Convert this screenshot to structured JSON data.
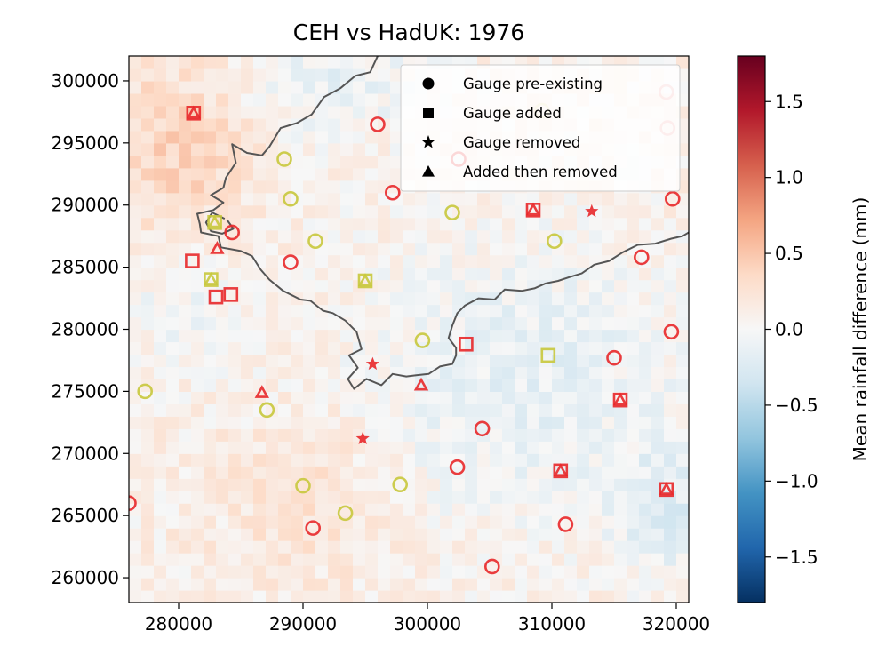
{
  "chart_data": {
    "type": "heatmap",
    "title": "CEH vs HadUK: 1976",
    "xlabel": "",
    "ylabel": "",
    "xlim": [
      276000,
      321000
    ],
    "ylim": [
      258000,
      302000
    ],
    "x_ticks": [
      280000,
      290000,
      300000,
      310000,
      320000
    ],
    "x_tick_labels": [
      "280000",
      "290000",
      "300000",
      "310000",
      "320000"
    ],
    "y_ticks": [
      260000,
      265000,
      270000,
      275000,
      280000,
      285000,
      290000,
      295000,
      300000
    ],
    "y_tick_labels": [
      "260000",
      "265000",
      "270000",
      "275000",
      "280000",
      "285000",
      "290000",
      "295000",
      "300000"
    ],
    "colorbar": {
      "label": "Mean rainfall difference (mm)",
      "range": [
        -1.8,
        1.8
      ],
      "ticks": [
        -1.5,
        -1.0,
        -0.5,
        0.0,
        0.5,
        1.0,
        1.5
      ],
      "tick_labels": [
        "−1.5",
        "−1.0",
        "−0.5",
        "0.0",
        "0.5",
        "1.0",
        "1.5"
      ],
      "colormap": "RdBu_r"
    },
    "grid_cell_size_m": 1000,
    "legend": {
      "position": "upper-right",
      "entries": [
        {
          "marker": "circle",
          "label": "Gauge pre-existing"
        },
        {
          "marker": "square",
          "label": "Gauge added"
        },
        {
          "marker": "star",
          "label": "Gauge removed"
        },
        {
          "marker": "triangle",
          "label": "Added then removed"
        }
      ]
    },
    "marker_colors": {
      "red": "#e8282a",
      "yellow": "#c8c83c",
      "boundary": "#555555"
    },
    "gauges": [
      {
        "x": 281200,
        "y": 297400,
        "marker": "square",
        "color": "red"
      },
      {
        "x": 281200,
        "y": 297400,
        "marker": "triangle",
        "color": "red"
      },
      {
        "x": 296000,
        "y": 296500,
        "marker": "circle",
        "color": "red"
      },
      {
        "x": 288500,
        "y": 293700,
        "marker": "circle",
        "color": "yellow"
      },
      {
        "x": 302500,
        "y": 293700,
        "marker": "circle",
        "color": "red"
      },
      {
        "x": 289000,
        "y": 290500,
        "marker": "circle",
        "color": "yellow"
      },
      {
        "x": 297200,
        "y": 291000,
        "marker": "circle",
        "color": "red"
      },
      {
        "x": 302000,
        "y": 289400,
        "marker": "circle",
        "color": "yellow"
      },
      {
        "x": 308500,
        "y": 289600,
        "marker": "square",
        "color": "red"
      },
      {
        "x": 308500,
        "y": 289600,
        "marker": "triangle",
        "color": "red"
      },
      {
        "x": 313200,
        "y": 289500,
        "marker": "star",
        "color": "red"
      },
      {
        "x": 319700,
        "y": 290500,
        "marker": "circle",
        "color": "red"
      },
      {
        "x": 282900,
        "y": 288600,
        "marker": "square",
        "color": "yellow"
      },
      {
        "x": 282900,
        "y": 288600,
        "marker": "triangle",
        "color": "yellow"
      },
      {
        "x": 284300,
        "y": 287800,
        "marker": "circle",
        "color": "red"
      },
      {
        "x": 291000,
        "y": 287100,
        "marker": "circle",
        "color": "yellow"
      },
      {
        "x": 310200,
        "y": 287100,
        "marker": "circle",
        "color": "yellow"
      },
      {
        "x": 283100,
        "y": 286500,
        "marker": "triangle",
        "color": "red"
      },
      {
        "x": 281100,
        "y": 285500,
        "marker": "square",
        "color": "red"
      },
      {
        "x": 289000,
        "y": 285400,
        "marker": "circle",
        "color": "red"
      },
      {
        "x": 317200,
        "y": 285800,
        "marker": "circle",
        "color": "red"
      },
      {
        "x": 282600,
        "y": 284000,
        "marker": "square",
        "color": "yellow"
      },
      {
        "x": 282600,
        "y": 284000,
        "marker": "triangle",
        "color": "yellow"
      },
      {
        "x": 295000,
        "y": 283900,
        "marker": "square",
        "color": "yellow"
      },
      {
        "x": 295000,
        "y": 283900,
        "marker": "triangle",
        "color": "yellow"
      },
      {
        "x": 283000,
        "y": 282600,
        "marker": "square",
        "color": "red"
      },
      {
        "x": 284200,
        "y": 282800,
        "marker": "square",
        "color": "red"
      },
      {
        "x": 299600,
        "y": 279100,
        "marker": "circle",
        "color": "yellow"
      },
      {
        "x": 303100,
        "y": 278800,
        "marker": "square",
        "color": "red"
      },
      {
        "x": 309700,
        "y": 277900,
        "marker": "square",
        "color": "yellow"
      },
      {
        "x": 315000,
        "y": 277700,
        "marker": "circle",
        "color": "red"
      },
      {
        "x": 319600,
        "y": 279800,
        "marker": "circle",
        "color": "red"
      },
      {
        "x": 295600,
        "y": 277200,
        "marker": "star",
        "color": "red"
      },
      {
        "x": 299500,
        "y": 275500,
        "marker": "triangle",
        "color": "red"
      },
      {
        "x": 277300,
        "y": 275000,
        "marker": "circle",
        "color": "yellow"
      },
      {
        "x": 286700,
        "y": 274900,
        "marker": "triangle",
        "color": "red"
      },
      {
        "x": 287100,
        "y": 273500,
        "marker": "circle",
        "color": "yellow"
      },
      {
        "x": 315500,
        "y": 274300,
        "marker": "square",
        "color": "red"
      },
      {
        "x": 315500,
        "y": 274300,
        "marker": "triangle",
        "color": "red"
      },
      {
        "x": 304400,
        "y": 272000,
        "marker": "circle",
        "color": "red"
      },
      {
        "x": 294800,
        "y": 271200,
        "marker": "star",
        "color": "red"
      },
      {
        "x": 302400,
        "y": 268900,
        "marker": "circle",
        "color": "red"
      },
      {
        "x": 310700,
        "y": 268600,
        "marker": "square",
        "color": "red"
      },
      {
        "x": 310700,
        "y": 268600,
        "marker": "triangle",
        "color": "red"
      },
      {
        "x": 290000,
        "y": 267400,
        "marker": "circle",
        "color": "yellow"
      },
      {
        "x": 297800,
        "y": 267500,
        "marker": "circle",
        "color": "yellow"
      },
      {
        "x": 319200,
        "y": 267100,
        "marker": "square",
        "color": "red"
      },
      {
        "x": 319200,
        "y": 267100,
        "marker": "triangle",
        "color": "red"
      },
      {
        "x": 276000,
        "y": 266000,
        "marker": "circle",
        "color": "red"
      },
      {
        "x": 293400,
        "y": 265200,
        "marker": "circle",
        "color": "yellow"
      },
      {
        "x": 290800,
        "y": 264000,
        "marker": "circle",
        "color": "red"
      },
      {
        "x": 311100,
        "y": 264300,
        "marker": "circle",
        "color": "red"
      },
      {
        "x": 305200,
        "y": 260900,
        "marker": "circle",
        "color": "red"
      },
      {
        "x": 319200,
        "y": 299100,
        "marker": "circle",
        "color": "red",
        "faded": true
      },
      {
        "x": 319300,
        "y": 296200,
        "marker": "circle",
        "color": "red",
        "faded": true
      },
      {
        "x": 309200,
        "y": 297600,
        "marker": "circle",
        "color": "yellow",
        "faded": true
      }
    ],
    "boundaries": [
      [
        [
          296000,
          302000
        ],
        [
          295400,
          300700
        ],
        [
          294200,
          300400
        ],
        [
          293000,
          299400
        ],
        [
          291700,
          298700
        ],
        [
          290700,
          297300
        ],
        [
          289500,
          296600
        ],
        [
          288200,
          296200
        ],
        [
          287300,
          294700
        ],
        [
          286700,
          294000
        ],
        [
          285500,
          294200
        ],
        [
          284300,
          294900
        ],
        [
          284600,
          293400
        ],
        [
          283800,
          292200
        ],
        [
          283600,
          291400
        ],
        [
          282600,
          290800
        ],
        [
          283600,
          290200
        ],
        [
          282800,
          289600
        ],
        [
          281500,
          289300
        ],
        [
          281700,
          288500
        ],
        [
          281800,
          287800
        ],
        [
          283200,
          287500
        ],
        [
          283400,
          286600
        ],
        [
          285000,
          286300
        ],
        [
          285900,
          285900
        ],
        [
          286600,
          284800
        ],
        [
          287300,
          284000
        ],
        [
          288400,
          283100
        ],
        [
          289800,
          282400
        ],
        [
          290600,
          282300
        ],
        [
          291600,
          281500
        ],
        [
          292400,
          281300
        ],
        [
          293400,
          280700
        ],
        [
          294300,
          279800
        ],
        [
          294700,
          278400
        ],
        [
          293700,
          277900
        ],
        [
          294400,
          276900
        ],
        [
          293600,
          276000
        ],
        [
          294100,
          275200
        ],
        [
          295100,
          276000
        ],
        [
          296300,
          275500
        ],
        [
          297200,
          276400
        ],
        [
          298300,
          276200
        ],
        [
          299100,
          276300
        ],
        [
          300100,
          276400
        ],
        [
          301000,
          277000
        ],
        [
          302000,
          277200
        ],
        [
          302300,
          277900
        ],
        [
          302300,
          278500
        ],
        [
          301700,
          279300
        ],
        [
          302000,
          280300
        ],
        [
          302400,
          281300
        ],
        [
          303000,
          281900
        ],
        [
          304100,
          282500
        ],
        [
          305400,
          282400
        ],
        [
          306200,
          283200
        ],
        [
          307600,
          283100
        ],
        [
          308600,
          283300
        ],
        [
          309500,
          283700
        ],
        [
          310500,
          283900
        ],
        [
          311400,
          284200
        ],
        [
          312400,
          284500
        ],
        [
          313400,
          285200
        ],
        [
          314600,
          285500
        ],
        [
          315700,
          286200
        ],
        [
          316900,
          286800
        ],
        [
          318300,
          286900
        ],
        [
          319600,
          287300
        ],
        [
          320500,
          287500
        ],
        [
          321000,
          287800
        ]
      ],
      [
        [
          283700,
          288900
        ],
        [
          282700,
          289400
        ],
        [
          282200,
          288600
        ],
        [
          282600,
          287900
        ],
        [
          283500,
          287700
        ],
        [
          284400,
          288100
        ],
        [
          283900,
          288800
        ]
      ]
    ]
  }
}
